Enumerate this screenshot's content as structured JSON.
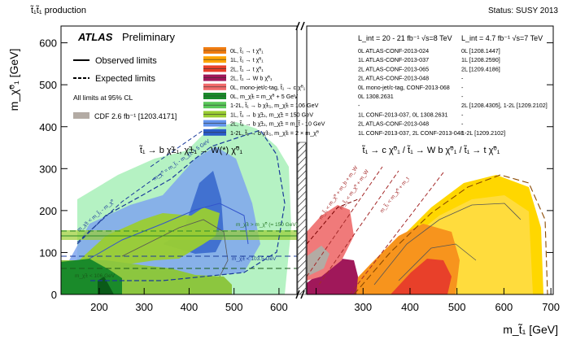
{
  "header": {
    "title": "t̃₁t̃₁ production",
    "status": "Status: SUSY 2013"
  },
  "chart_data": {
    "type": "area",
    "title": "t̃₁t̃₁ production",
    "xlabel": "m_t̃₁ [GeV]",
    "ylabel": "m_χ̃⁰₁ [GeV]",
    "ylim": [
      0,
      640
    ],
    "left_panel": {
      "xlim": [
        115,
        640
      ],
      "xticks": [
        200,
        300,
        400,
        500,
        600
      ],
      "decay_label": "t̃₁ → b χ̃±₁, χ̃±₁ → W(*) χ̃⁰₁"
    },
    "right_panel": {
      "xlim": [
        180,
        705
      ],
      "xticks": [
        200,
        300,
        400,
        500,
        600,
        700
      ],
      "decay_label": "t̃₁ → c χ̃⁰₁ / t̃₁ → W b χ̃⁰₁ / t̃₁ → t χ̃⁰₁"
    },
    "yticks": [
      0,
      100,
      200,
      300,
      400,
      500,
      600
    ],
    "experiment": "ATLAS",
    "experiment_sub": "Preliminary",
    "line_legend": [
      "Observed limits",
      "Expected limits"
    ],
    "cl_note": "All limits at 95% CL",
    "cdf": "CDF 2.6 fb⁻¹ [1203.4171]",
    "lumi_8tev": "L_int = 20 - 21 fb⁻¹ √s=8 TeV",
    "lumi_7tev": "L_int = 4.7 fb⁻¹ √s=7 TeV",
    "series": [
      {
        "name": "0L, t̃₁ → t χ̃⁰₁",
        "ref8": "0L ATLAS-CONF-2013-024",
        "ref7": "0L [1208.1447]",
        "color": "#f07c10"
      },
      {
        "name": "1L, t̃₁ → t χ̃⁰₁",
        "ref8": "1L ATLAS-CONF-2013-037",
        "ref7": "1L [1208.2590]",
        "color": "#ffa500"
      },
      {
        "name": "2L, t̃₁ → t χ̃⁰₁",
        "ref8": "2L ATLAS-CONF-2013-065",
        "ref7": "2L [1209.4186]",
        "color": "#e8402a"
      },
      {
        "name": "2L, t̃₁ → W b χ̃⁰₁",
        "ref8": "2L ATLAS-CONF-2013-048",
        "ref7": "-",
        "color": "#a0185a"
      },
      {
        "name": "0L, mono-jet/c-tag, t̃₁ → c χ̃⁰₁",
        "ref8": "0L mono-jet/c-tag, CONF-2013-068",
        "ref7": "-",
        "color": "#f06a6a"
      },
      {
        "name": "0L, m_χ̃± = m_χ̃⁰ + 5 GeV",
        "ref8": "0L 1308.2631",
        "ref7": "-",
        "color": "#1a8a2a"
      },
      {
        "name": "1-2L, t̃₁ → b χ̃±₁, m_χ̃± = 106 GeV",
        "ref8": "-",
        "ref7": "2L [1208.4305], 1-2L [1209.2102]",
        "color": "#5ac85a"
      },
      {
        "name": "1L, t̃₁ → b χ̃±₁, m_χ̃± = 150 GeV",
        "ref8": "1L CONF-2013-037, 0L 1308.2631",
        "ref7": "-",
        "color": "#9acd32"
      },
      {
        "name": "2L, t̃₁ → b χ̃±₁, m_χ̃± = m_t̃ - 10 GeV",
        "ref8": "2L ATLAS-CONF-2013-048",
        "ref7": "-",
        "color": "#6495ed"
      },
      {
        "name": "1-2L, t̃₁ → b χ̃±₁, m_χ̃± = 2 × m_χ̃⁰",
        "ref8": "1L CONF-2013-037, 2L CONF-2013-048",
        "ref7": "1-2L [1209.2102]",
        "color": "#2a5cc8"
      }
    ],
    "annotations": [
      "m_χ̃± > m_χ̃⁰ (= 150 GeV)",
      "m_χ̃± < 103.5 GeV",
      "m_χ̃± < 106 GeV",
      "m_χ̃± < m_t̃₁ - m_χ̃⁰",
      "m_χ̃⁰ = m_t̃₁ - m_χ̃± + 5 GeV",
      "m_t̃₁ < m_χ̃⁰ + m_b + m_W",
      "m_t̃₁ < m_χ̃⁰ + m_W",
      "m_t̃₁ < m_χ̃⁰ + m_t"
    ]
  }
}
